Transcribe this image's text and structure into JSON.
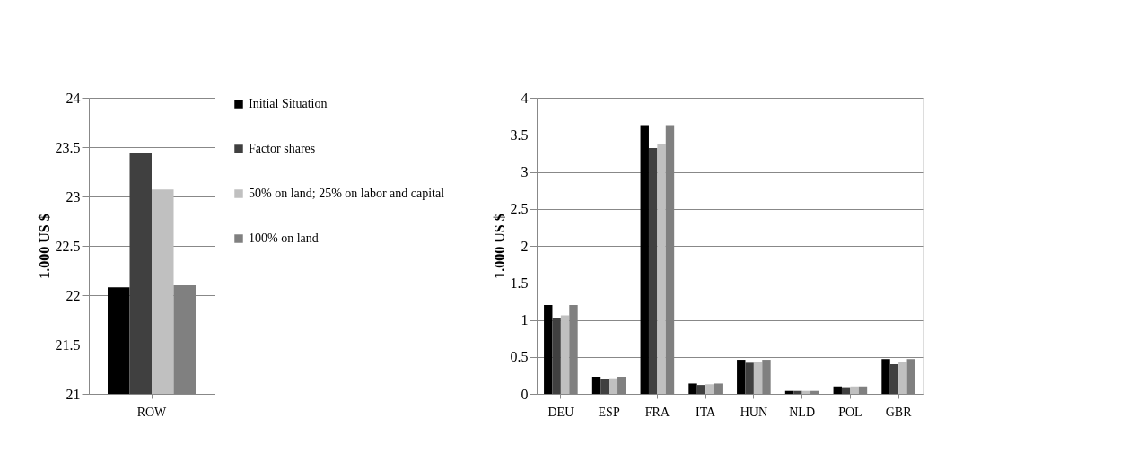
{
  "chart_data": [
    {
      "type": "bar",
      "categories": [
        "ROW"
      ],
      "ylabel": "1.000 US $",
      "ylim": [
        21,
        24
      ],
      "yticks": [
        21,
        21.5,
        22,
        22.5,
        23,
        23.5,
        24
      ],
      "grid": "y",
      "legend": "right",
      "series": [
        {
          "name": "Initial Situation",
          "color": "#000000",
          "values": [
            22.08
          ]
        },
        {
          "name": "Factor shares",
          "color": "#404040",
          "values": [
            23.44
          ]
        },
        {
          "name": "50% on land; 25% on labor and capital",
          "color": "#c0c0c0",
          "values": [
            23.07
          ]
        },
        {
          "name": "100% on land",
          "color": "#808080",
          "values": [
            22.1
          ]
        }
      ]
    },
    {
      "type": "bar",
      "categories": [
        "DEU",
        "ESP",
        "FRA",
        "ITA",
        "HUN",
        "NLD",
        "POL",
        "GBR"
      ],
      "ylabel": "1.000 US $",
      "ylim": [
        0,
        4
      ],
      "yticks": [
        0,
        0.5,
        1,
        1.5,
        2,
        2.5,
        3,
        3.5,
        4
      ],
      "grid": "y",
      "series": [
        {
          "color": "#000000",
          "values": [
            1.2,
            0.23,
            3.63,
            0.14,
            0.46,
            0.04,
            0.1,
            0.47
          ]
        },
        {
          "color": "#404040",
          "values": [
            1.03,
            0.2,
            3.32,
            0.12,
            0.42,
            0.04,
            0.09,
            0.4
          ]
        },
        {
          "color": "#c0c0c0",
          "values": [
            1.06,
            0.21,
            3.37,
            0.13,
            0.43,
            0.04,
            0.1,
            0.43
          ]
        },
        {
          "color": "#808080",
          "values": [
            1.2,
            0.23,
            3.63,
            0.14,
            0.46,
            0.04,
            0.1,
            0.47
          ]
        }
      ]
    }
  ]
}
